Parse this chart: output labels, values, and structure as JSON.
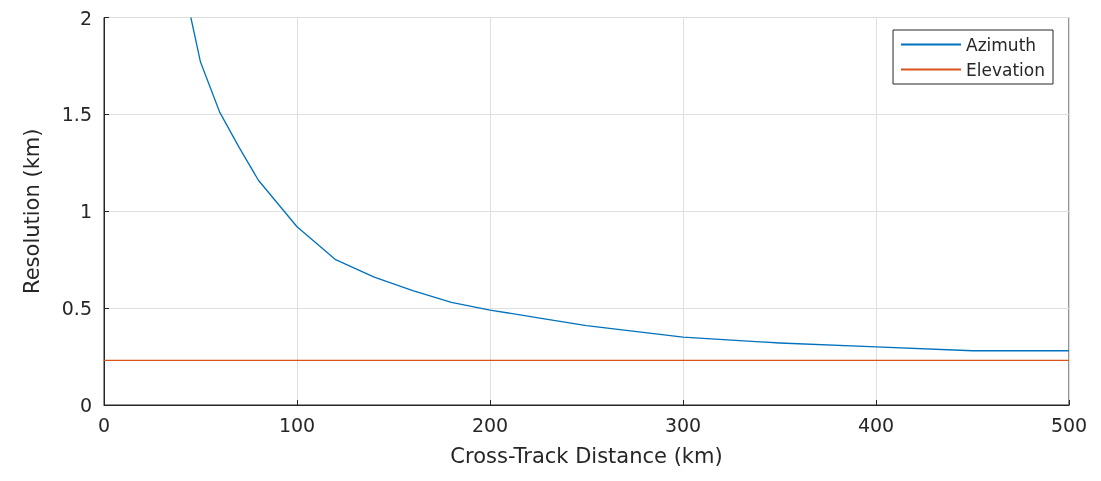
{
  "chart_data": {
    "type": "line",
    "xlabel": "Cross-Track Distance (km)",
    "ylabel": "Resolution (km)",
    "xlim": [
      0,
      500
    ],
    "xticks": [
      0,
      100,
      200,
      300,
      400,
      500
    ],
    "ylim": [
      0,
      2
    ],
    "yticks": [
      0,
      0.5,
      1,
      1.5,
      2
    ],
    "grid": true,
    "legend": "top right",
    "marker": "none",
    "line_style": "solid",
    "series": [
      {
        "name": "Azimuth",
        "color": "#0072bd",
        "x": [
          45,
          50,
          60,
          70,
          80,
          90,
          100,
          120,
          140,
          160,
          180,
          200,
          225,
          250,
          275,
          300,
          350,
          400,
          450,
          500
        ],
        "values": [
          2.0,
          1.77,
          1.51,
          1.33,
          1.16,
          1.04,
          0.92,
          0.75,
          0.66,
          0.59,
          0.53,
          0.49,
          0.45,
          0.41,
          0.38,
          0.35,
          0.32,
          0.3,
          0.28,
          0.28
        ]
      },
      {
        "name": "Elevation",
        "color": "#d95319",
        "x": [
          0,
          500
        ],
        "values": [
          0.23,
          0.23
        ]
      }
    ]
  }
}
